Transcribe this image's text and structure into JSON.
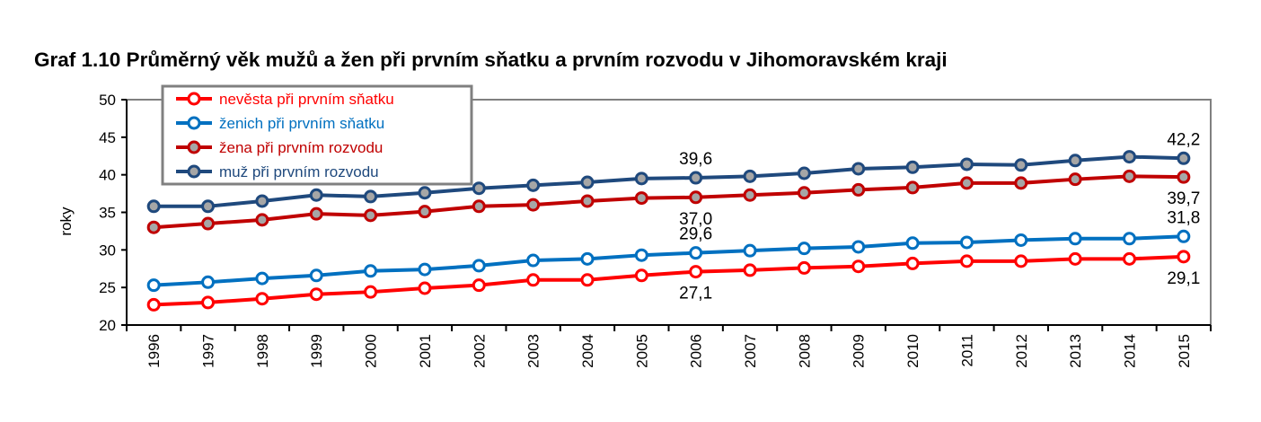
{
  "chart_data": {
    "type": "line",
    "title": "Graf 1.10 Průměrný věk mužů a žen při prvním sňatku a prvním rozvodu v Jihomoravském kraji",
    "xlabel": "",
    "ylabel": "roky",
    "ylim": [
      20,
      50
    ],
    "yticks": [
      "20",
      "25",
      "30",
      "35",
      "40",
      "45",
      "50"
    ],
    "grid": false,
    "legend_position": "top-left",
    "categories": [
      "1996",
      "1997",
      "1998",
      "1999",
      "2000",
      "2001",
      "2002",
      "2003",
      "2004",
      "2005",
      "2006",
      "2007",
      "2008",
      "2009",
      "2010",
      "2011",
      "2012",
      "2013",
      "2014",
      "2015"
    ],
    "series": [
      {
        "name": "nevěsta při prvním sňatku",
        "color": "#ff0000",
        "marker_fill": "#ffffff",
        "values": [
          22.7,
          23.0,
          23.5,
          24.1,
          24.4,
          24.9,
          25.3,
          26.0,
          26.0,
          26.6,
          27.1,
          27.3,
          27.6,
          27.8,
          28.2,
          28.5,
          28.5,
          28.8,
          28.8,
          29.1
        ]
      },
      {
        "name": "ženich při prvním sňatku",
        "color": "#0070c0",
        "marker_fill": "#ffffff",
        "values": [
          25.3,
          25.7,
          26.2,
          26.6,
          27.2,
          27.4,
          27.9,
          28.6,
          28.8,
          29.3,
          29.6,
          29.9,
          30.2,
          30.4,
          30.9,
          31.0,
          31.3,
          31.5,
          31.5,
          31.8
        ]
      },
      {
        "name": "žena při prvním rozvodu",
        "color": "#c00000",
        "marker_fill": "#a6a6a6",
        "values": [
          33.0,
          33.5,
          34.0,
          34.8,
          34.6,
          35.1,
          35.8,
          36.0,
          36.5,
          36.9,
          37.0,
          37.3,
          37.6,
          38.0,
          38.3,
          38.9,
          38.9,
          39.4,
          39.8,
          39.7
        ]
      },
      {
        "name": "muž při prvním rozvodu",
        "color": "#1f497d",
        "marker_fill": "#a6a6a6",
        "values": [
          35.8,
          35.8,
          36.5,
          37.3,
          37.1,
          37.6,
          38.2,
          38.6,
          39.0,
          39.5,
          39.6,
          39.8,
          40.2,
          40.8,
          41.0,
          41.4,
          41.3,
          41.9,
          42.4,
          42.2
        ]
      }
    ],
    "data_labels": [
      {
        "series": 3,
        "index": 10,
        "text": "39,6",
        "pos": "above"
      },
      {
        "series": 3,
        "index": 19,
        "text": "42,2",
        "pos": "above"
      },
      {
        "series": 2,
        "index": 10,
        "text": "37,0",
        "pos": "below"
      },
      {
        "series": 2,
        "index": 19,
        "text": "39,7",
        "pos": "below"
      },
      {
        "series": 1,
        "index": 10,
        "text": "29,6",
        "pos": "above"
      },
      {
        "series": 1,
        "index": 19,
        "text": "31,8",
        "pos": "above"
      },
      {
        "series": 0,
        "index": 10,
        "text": "27,1",
        "pos": "below"
      },
      {
        "series": 0,
        "index": 19,
        "text": "29,1",
        "pos": "below"
      }
    ]
  }
}
